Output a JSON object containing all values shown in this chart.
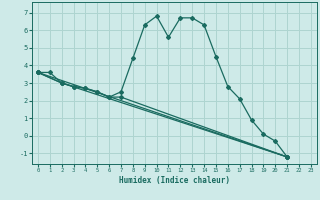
{
  "xlabel": "Humidex (Indice chaleur)",
  "background_color": "#ceeae8",
  "grid_color": "#aed4d0",
  "line_color": "#1a6b60",
  "xlim": [
    -0.5,
    23.5
  ],
  "ylim": [
    -1.6,
    7.6
  ],
  "xticks": [
    0,
    1,
    2,
    3,
    4,
    5,
    6,
    7,
    8,
    9,
    10,
    11,
    12,
    13,
    14,
    15,
    16,
    17,
    18,
    19,
    20,
    21,
    22,
    23
  ],
  "yticks": [
    -1,
    0,
    1,
    2,
    3,
    4,
    5,
    6,
    7
  ],
  "series": [
    {
      "x": [
        0,
        1,
        2,
        3,
        4,
        5,
        6,
        7,
        8,
        9,
        10,
        11,
        12,
        13,
        14,
        15,
        16,
        17,
        18,
        19,
        20,
        21
      ],
      "y": [
        3.6,
        3.6,
        3.0,
        2.8,
        2.7,
        2.5,
        2.2,
        2.5,
        4.4,
        6.3,
        6.8,
        5.6,
        6.7,
        6.7,
        6.3,
        4.5,
        2.8,
        2.1,
        0.9,
        0.1,
        -0.3,
        -1.2
      ]
    },
    {
      "x": [
        0,
        2,
        3,
        4,
        5,
        6,
        7,
        21
      ],
      "y": [
        3.6,
        3.0,
        2.8,
        2.7,
        2.5,
        2.2,
        2.2,
        -1.2
      ]
    },
    {
      "x": [
        0,
        2,
        21
      ],
      "y": [
        3.6,
        3.0,
        -1.2
      ]
    },
    {
      "x": [
        0,
        21
      ],
      "y": [
        3.6,
        -1.2
      ]
    }
  ]
}
